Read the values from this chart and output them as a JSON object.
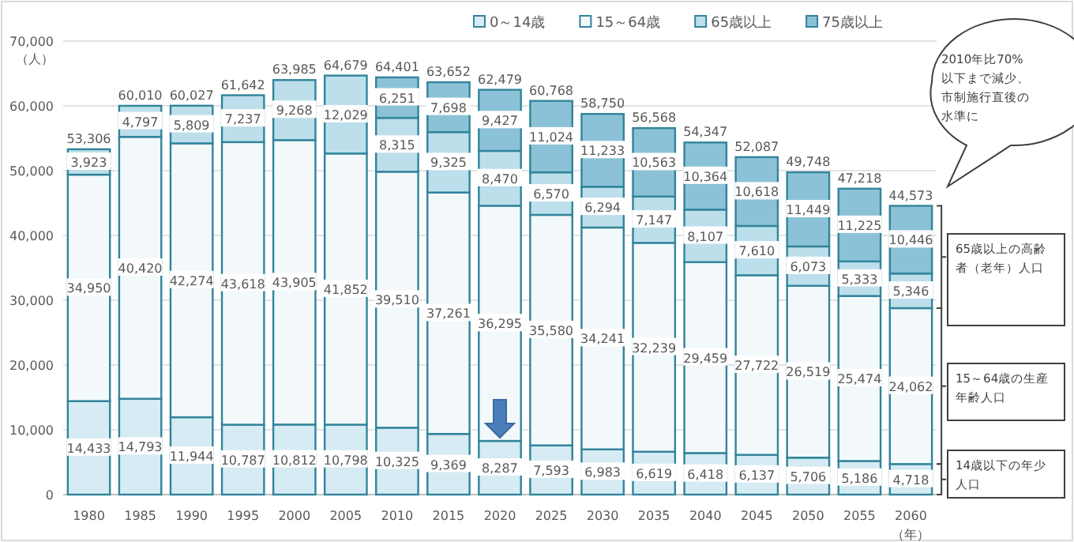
{
  "chart_data": {
    "type": "bar",
    "stacked": true,
    "categories": [
      "1980",
      "1985",
      "1990",
      "1995",
      "2000",
      "2005",
      "2010",
      "2015",
      "2020",
      "2025",
      "2030",
      "2035",
      "2040",
      "2045",
      "2050",
      "2055",
      "2060"
    ],
    "series": [
      {
        "name": "0～14歳",
        "color": "#d6ebf3",
        "values": [
          14433,
          14793,
          11944,
          10787,
          10812,
          10798,
          10325,
          9369,
          8287,
          7593,
          6983,
          6619,
          6418,
          6137,
          5706,
          5186,
          4718
        ],
        "value_labels": [
          "14,433",
          "14,793",
          "11,944",
          "10,787",
          "10,812",
          "10,798",
          "10,325",
          "9,369",
          "8,287",
          "7,593",
          "6,983",
          "6,619",
          "6,418",
          "6,137",
          "5,706",
          "5,186",
          "4,718"
        ]
      },
      {
        "name": "15～64歳",
        "color": "#f3f9fb",
        "values": [
          34950,
          40420,
          42274,
          43618,
          43905,
          41852,
          39510,
          37261,
          36295,
          35580,
          34241,
          32239,
          29459,
          27722,
          26519,
          25474,
          24062
        ],
        "value_labels": [
          "34,950",
          "40,420",
          "42,274",
          "43,618",
          "43,905",
          "41,852",
          "39,510",
          "37,261",
          "36,295",
          "35,580",
          "34,241",
          "32,239",
          "29,459",
          "27,722",
          "26,519",
          "25,474",
          "24,062"
        ]
      },
      {
        "name": "65歳以上",
        "color": "#bcdfeb",
        "values": [
          3923,
          4797,
          5809,
          7237,
          9268,
          12029,
          8315,
          9325,
          8470,
          6570,
          6294,
          7147,
          8107,
          7610,
          6073,
          5333,
          5346
        ],
        "value_labels": [
          "3,923",
          "4,797",
          "5,809",
          "7,237",
          "9,268",
          "12,029",
          "8,315",
          "9,325",
          "8,470",
          "6,570",
          "6,294",
          "7,147",
          "8,107",
          "7,610",
          "6,073",
          "5,333",
          "5,346"
        ]
      },
      {
        "name": "75歳以上",
        "color": "#8cc2d7",
        "values": [
          null,
          null,
          null,
          null,
          null,
          null,
          6251,
          7698,
          9427,
          11024,
          11233,
          10563,
          10364,
          10618,
          11449,
          11225,
          10446
        ],
        "value_labels": [
          null,
          null,
          null,
          null,
          null,
          null,
          "6,251",
          "7,698",
          "9,427",
          "11,024",
          "11,233",
          "10,563",
          "10,364",
          "10,618",
          "11,449",
          "11,225",
          "10,446"
        ]
      }
    ],
    "totals": [
      "53,306",
      "60,010",
      "60,027",
      "61,642",
      "63,985",
      "64,679",
      "64,401",
      "63,652",
      "62,479",
      "60,768",
      "58,750",
      "56,568",
      "54,347",
      "52,087",
      "49,748",
      "47,218",
      "44,573"
    ],
    "ylim": [
      0,
      70000
    ],
    "yticks": [
      {
        "value": 0,
        "label": "0"
      },
      {
        "value": 10000,
        "label": "10,000"
      },
      {
        "value": 20000,
        "label": "20,000"
      },
      {
        "value": 30000,
        "label": "30,000"
      },
      {
        "value": 40000,
        "label": "40,000"
      },
      {
        "value": 50000,
        "label": "50,000"
      },
      {
        "value": 60000,
        "label": "60,000"
      },
      {
        "value": 70000,
        "label": "70,000"
      }
    ],
    "ylabel": "（人）",
    "xlabel": "（年）",
    "grid": "y",
    "legend": "top",
    "annotations": [
      "2010年比70%以下まで減少、市制施行直後の水準に",
      "65歳以上の高齢者（老年）人口",
      "15～64歳の生産年齢人口",
      "14歳以下の年少人口"
    ]
  }
}
